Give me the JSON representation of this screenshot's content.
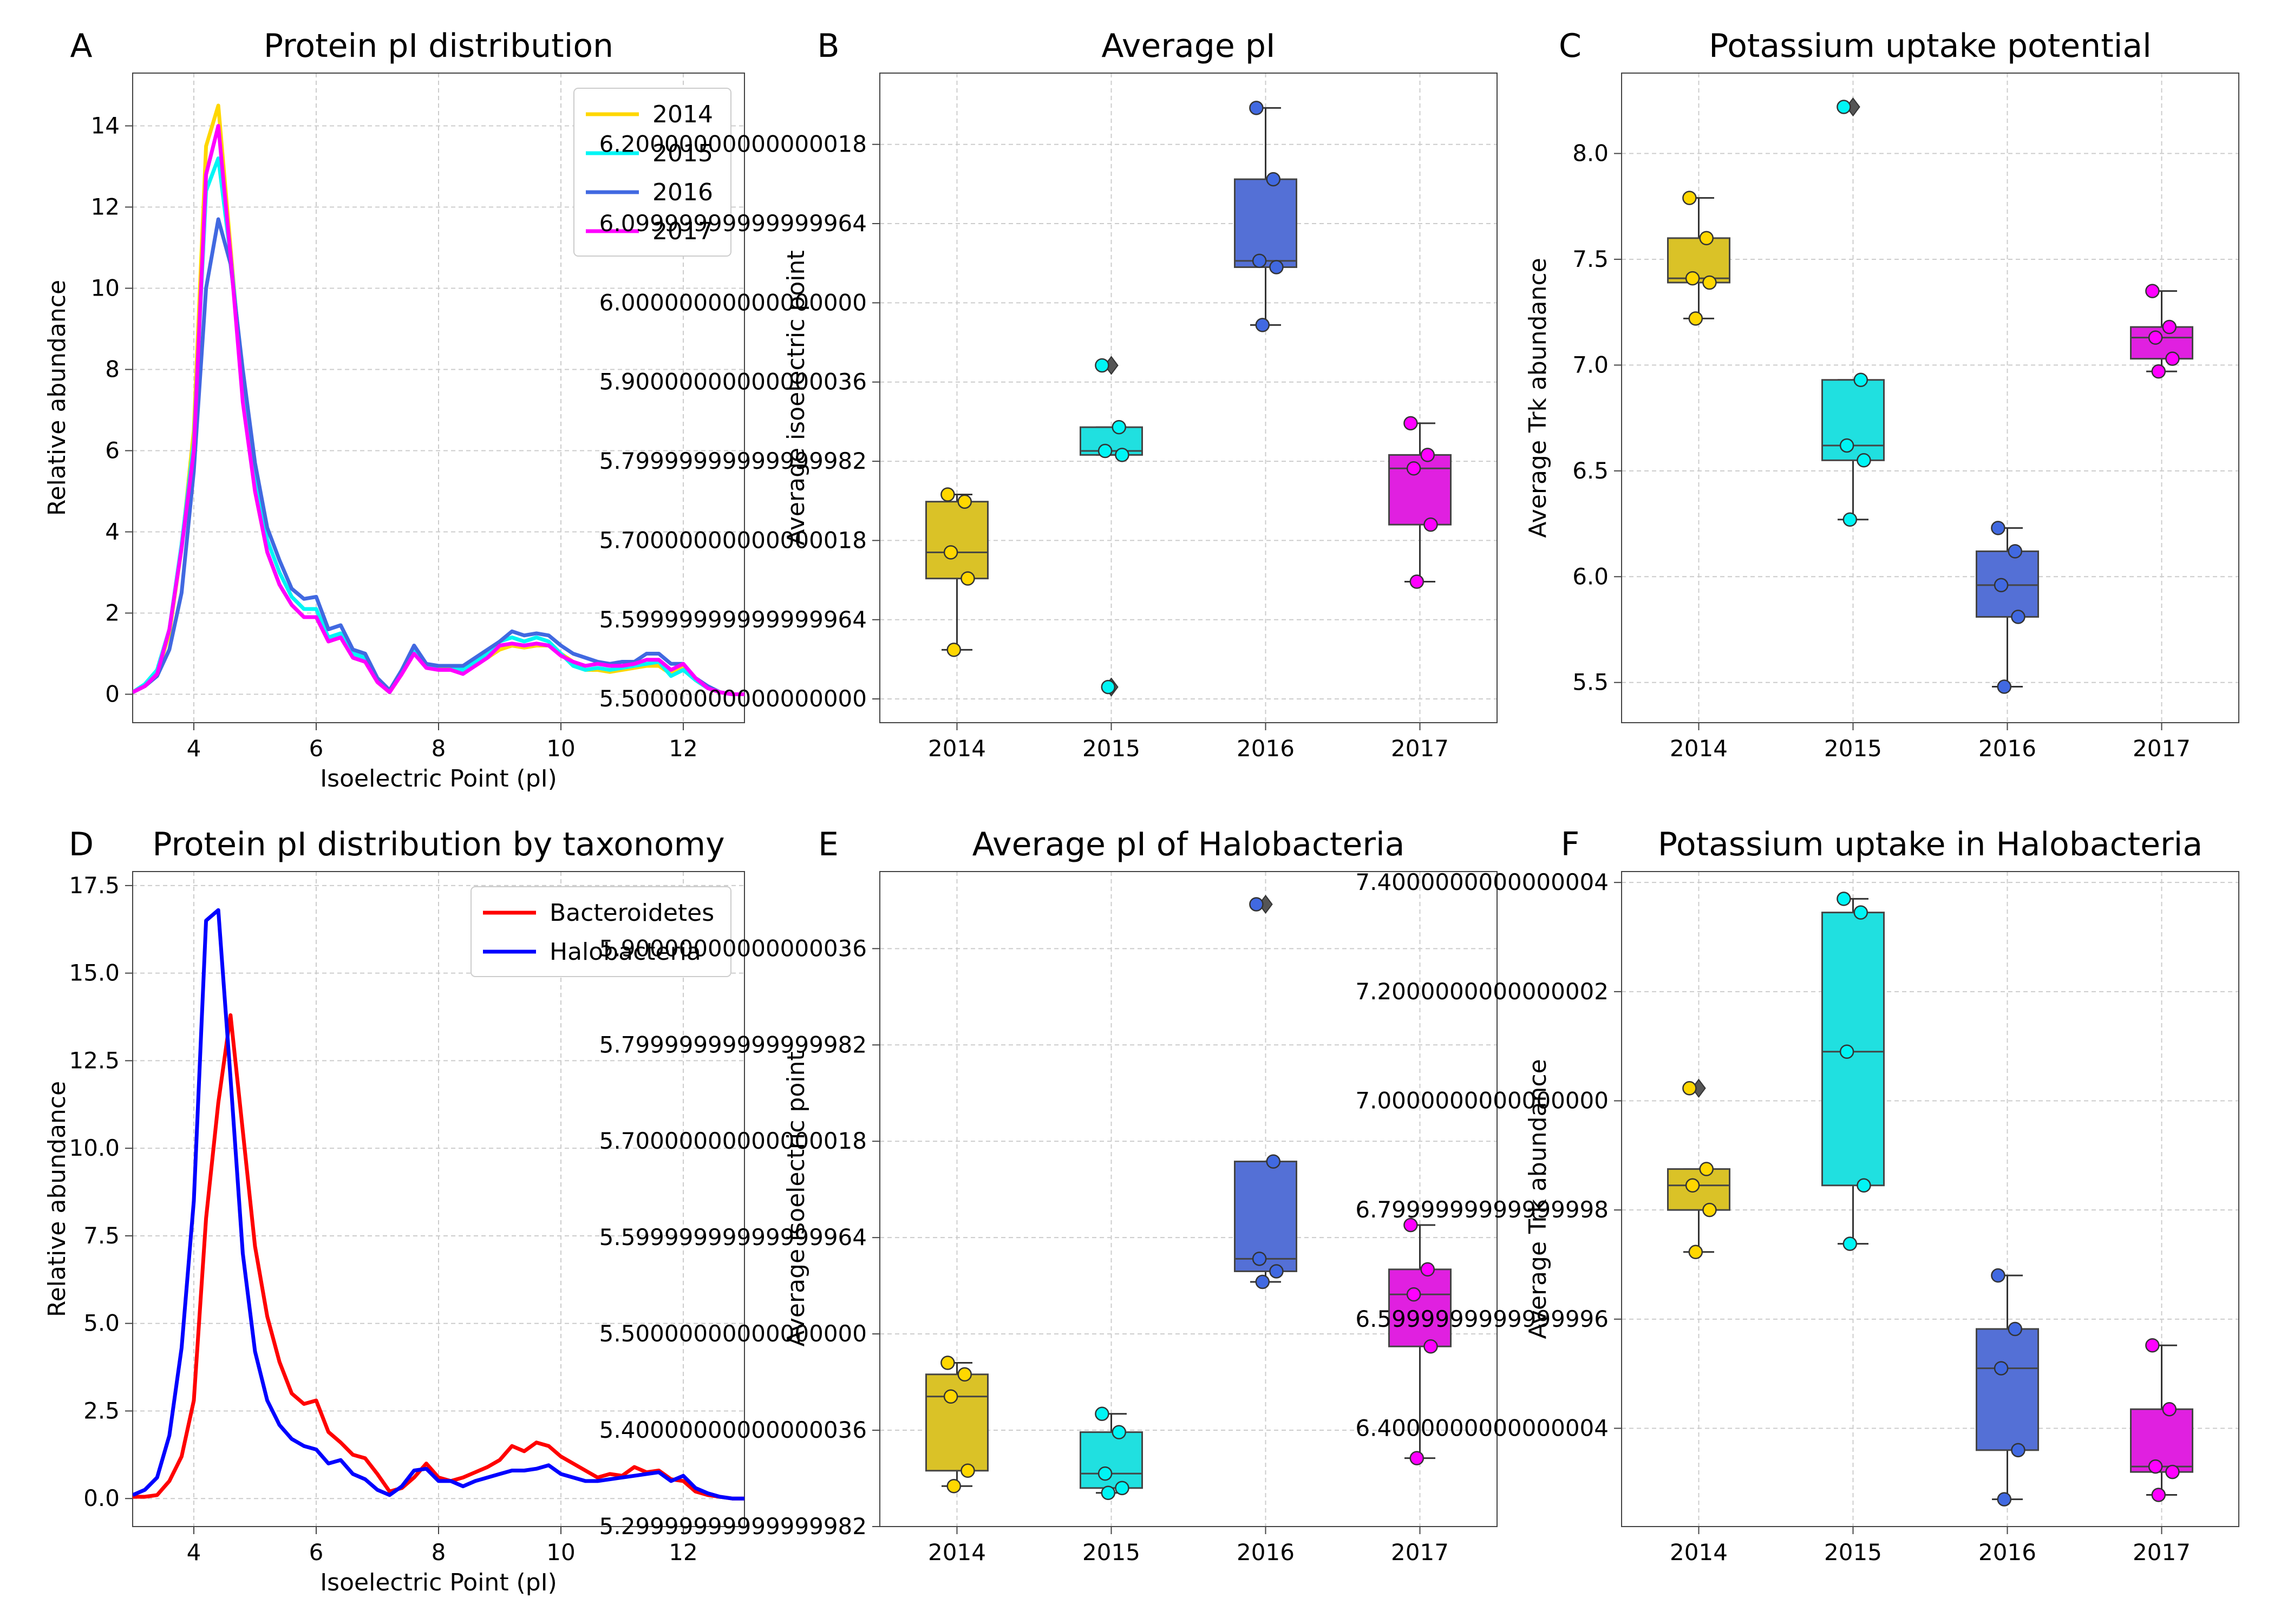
{
  "chart_data": [
    {
      "panel": "A",
      "type": "line",
      "title": "Protein pI distribution",
      "xlabel": "Isoelectric Point (pI)",
      "ylabel": "Relative abundance",
      "xlim": [
        3,
        13
      ],
      "ylim": [
        -0.7,
        15.3
      ],
      "xticks": [
        4,
        6,
        8,
        10,
        12
      ],
      "yticks": [
        0,
        2,
        4,
        6,
        8,
        10,
        12,
        14
      ],
      "grid": true,
      "legend": "top-right",
      "x": [
        3,
        3.2,
        3.4,
        3.6,
        3.8,
        4,
        4.2,
        4.4,
        4.6,
        4.8,
        5,
        5.2,
        5.4,
        5.6,
        5.8,
        6,
        6.2,
        6.4,
        6.6,
        6.8,
        7,
        7.2,
        7.4,
        7.6,
        7.8,
        8,
        8.2,
        8.4,
        8.6,
        8.8,
        9,
        9.2,
        9.4,
        9.6,
        9.8,
        10,
        10.2,
        10.4,
        10.6,
        10.8,
        11,
        11.2,
        11.4,
        11.6,
        11.8,
        12,
        12.2,
        12.4,
        12.6,
        12.8,
        13
      ],
      "series": [
        {
          "name": "2014",
          "color": "#FFD700",
          "values": [
            0.05,
            0.2,
            0.5,
            1.5,
            3.6,
            6.5,
            13.5,
            14.5,
            11,
            7.5,
            5,
            3.5,
            2.7,
            2.2,
            1.9,
            1.9,
            1.3,
            1.4,
            0.9,
            0.8,
            0.3,
            0.05,
            0.5,
            1.0,
            0.7,
            0.65,
            0.65,
            0.55,
            0.7,
            0.9,
            1.1,
            1.2,
            1.15,
            1.2,
            1.2,
            1.0,
            0.8,
            0.6,
            0.6,
            0.55,
            0.6,
            0.65,
            0.7,
            0.7,
            0.5,
            0.7,
            0.35,
            0.15,
            0.05,
            0.0,
            0.0
          ]
        },
        {
          "name": "2015",
          "color": "#00F5F5",
          "values": [
            0.05,
            0.25,
            0.6,
            1.6,
            3.7,
            6.2,
            12.4,
            13.2,
            10.8,
            7.8,
            5.3,
            3.8,
            3.0,
            2.4,
            2.1,
            2.1,
            1.4,
            1.5,
            1.0,
            0.9,
            0.35,
            0.05,
            0.55,
            1.1,
            0.7,
            0.7,
            0.7,
            0.6,
            0.8,
            1.0,
            1.3,
            1.4,
            1.3,
            1.4,
            1.3,
            1.0,
            0.7,
            0.6,
            0.65,
            0.6,
            0.65,
            0.7,
            0.75,
            0.8,
            0.45,
            0.6,
            0.35,
            0.15,
            0.05,
            0.0,
            0.0
          ]
        },
        {
          "name": "2016",
          "color": "#4169E1",
          "values": [
            0.05,
            0.2,
            0.45,
            1.1,
            2.5,
            5.5,
            10.0,
            11.7,
            10.6,
            8.0,
            5.7,
            4.1,
            3.3,
            2.6,
            2.35,
            2.4,
            1.6,
            1.7,
            1.1,
            1.0,
            0.4,
            0.1,
            0.6,
            1.2,
            0.75,
            0.7,
            0.7,
            0.7,
            0.9,
            1.1,
            1.3,
            1.55,
            1.45,
            1.5,
            1.45,
            1.2,
            1.0,
            0.9,
            0.8,
            0.75,
            0.8,
            0.8,
            1.0,
            1.0,
            0.75,
            0.75,
            0.4,
            0.2,
            0.05,
            0.0,
            0.0
          ]
        },
        {
          "name": "2017",
          "color": "#FF00FF",
          "values": [
            0.05,
            0.2,
            0.5,
            1.6,
            3.6,
            6.0,
            12.8,
            14.0,
            10.8,
            7.2,
            5.0,
            3.5,
            2.7,
            2.2,
            1.9,
            1.9,
            1.3,
            1.4,
            0.9,
            0.8,
            0.3,
            0.05,
            0.5,
            1.0,
            0.65,
            0.6,
            0.6,
            0.5,
            0.7,
            0.9,
            1.2,
            1.25,
            1.2,
            1.25,
            1.2,
            0.95,
            0.8,
            0.7,
            0.75,
            0.7,
            0.7,
            0.75,
            0.85,
            0.85,
            0.6,
            0.75,
            0.4,
            0.15,
            0.05,
            0.0,
            0.0
          ]
        }
      ]
    },
    {
      "panel": "B",
      "type": "box",
      "title": "Average pI",
      "xlabel": "",
      "ylabel": "Average isoelectric point",
      "categories": [
        "2014",
        "2015",
        "2016",
        "2017"
      ],
      "ylim": [
        5.47,
        6.29
      ],
      "yticks": [
        5.5,
        5.6,
        5.7,
        5.8,
        5.9,
        6.0,
        6.1,
        6.2
      ],
      "grid": true,
      "boxes": [
        {
          "color": "#DAC227",
          "point_color": "#FFD700",
          "q1": 5.652,
          "median": 5.685,
          "q3": 5.749,
          "whisker_low": 5.562,
          "whisker_high": 5.758,
          "outliers": [],
          "points": [
            5.758,
            5.749,
            5.685,
            5.652,
            5.562
          ]
        },
        {
          "color": "#20E0E0",
          "point_color": "#00F5F5",
          "q1": 5.808,
          "median": 5.813,
          "q3": 5.843,
          "whisker_low": 5.808,
          "whisker_high": 5.843,
          "outliers": [
            5.921,
            5.515
          ],
          "points": [
            5.921,
            5.843,
            5.813,
            5.808,
            5.515
          ]
        },
        {
          "color": "#5470D6",
          "point_color": "#4169E1",
          "q1": 6.045,
          "median": 6.053,
          "q3": 6.156,
          "whisker_low": 5.972,
          "whisker_high": 6.246,
          "outliers": [],
          "points": [
            6.246,
            6.156,
            6.053,
            6.045,
            5.972
          ]
        },
        {
          "color": "#E020E0",
          "point_color": "#FF00FF",
          "q1": 5.72,
          "median": 5.791,
          "q3": 5.808,
          "whisker_low": 5.648,
          "whisker_high": 5.848,
          "outliers": [],
          "points": [
            5.848,
            5.808,
            5.791,
            5.72,
            5.648
          ]
        }
      ]
    },
    {
      "panel": "C",
      "type": "box",
      "title": "Potassium uptake potential",
      "xlabel": "",
      "ylabel": "Average Trk abundance",
      "categories": [
        "2014",
        "2015",
        "2016",
        "2017"
      ],
      "ylim": [
        5.31,
        8.38
      ],
      "yticks": [
        5.5,
        6.0,
        6.5,
        7.0,
        7.5,
        8.0
      ],
      "grid": true,
      "boxes": [
        {
          "color": "#DAC227",
          "point_color": "#FFD700",
          "q1": 7.39,
          "median": 7.41,
          "q3": 7.6,
          "whisker_low": 7.22,
          "whisker_high": 7.79,
          "outliers": [],
          "points": [
            7.79,
            7.6,
            7.41,
            7.39,
            7.22
          ]
        },
        {
          "color": "#20E0E0",
          "point_color": "#00F5F5",
          "q1": 6.55,
          "median": 6.62,
          "q3": 6.93,
          "whisker_low": 6.27,
          "whisker_high": 6.93,
          "outliers": [
            8.22
          ],
          "points": [
            8.22,
            6.93,
            6.62,
            6.55,
            6.27
          ]
        },
        {
          "color": "#5470D6",
          "point_color": "#4169E1",
          "q1": 5.81,
          "median": 5.96,
          "q3": 6.12,
          "whisker_low": 5.48,
          "whisker_high": 6.23,
          "outliers": [],
          "points": [
            6.23,
            6.12,
            5.96,
            5.81,
            5.48
          ]
        },
        {
          "color": "#E020E0",
          "point_color": "#FF00FF",
          "q1": 7.03,
          "median": 7.13,
          "q3": 7.18,
          "whisker_low": 6.97,
          "whisker_high": 7.35,
          "outliers": [],
          "points": [
            7.35,
            7.18,
            7.13,
            7.03,
            6.97
          ]
        }
      ]
    },
    {
      "panel": "D",
      "type": "line",
      "title": "Protein pI distribution by taxonomy",
      "xlabel": "Isoelectric Point (pI)",
      "ylabel": "Relative abundance",
      "xlim": [
        3,
        13
      ],
      "ylim": [
        -0.8,
        17.9
      ],
      "xticks": [
        4,
        6,
        8,
        10,
        12
      ],
      "yticks": [
        0.0,
        2.5,
        5.0,
        7.5,
        10.0,
        12.5,
        15.0,
        17.5
      ],
      "grid": true,
      "legend": "top-right",
      "x": [
        3,
        3.2,
        3.4,
        3.6,
        3.8,
        4,
        4.2,
        4.4,
        4.6,
        4.8,
        5,
        5.2,
        5.4,
        5.6,
        5.8,
        6,
        6.2,
        6.4,
        6.6,
        6.8,
        7,
        7.2,
        7.4,
        7.6,
        7.8,
        8,
        8.2,
        8.4,
        8.6,
        8.8,
        9,
        9.2,
        9.4,
        9.6,
        9.8,
        10,
        10.2,
        10.4,
        10.6,
        10.8,
        11,
        11.2,
        11.4,
        11.6,
        11.8,
        12,
        12.2,
        12.4,
        12.6,
        12.8,
        13
      ],
      "series": [
        {
          "name": "Bacteroidetes",
          "color": "#FF0000",
          "values": [
            0.05,
            0.05,
            0.1,
            0.5,
            1.2,
            2.8,
            8.0,
            11.3,
            13.8,
            10.5,
            7.2,
            5.2,
            3.9,
            3.0,
            2.7,
            2.8,
            1.9,
            1.6,
            1.25,
            1.15,
            0.7,
            0.2,
            0.3,
            0.6,
            1.0,
            0.6,
            0.5,
            0.6,
            0.75,
            0.9,
            1.1,
            1.5,
            1.35,
            1.6,
            1.5,
            1.2,
            1.0,
            0.8,
            0.6,
            0.7,
            0.65,
            0.9,
            0.75,
            0.8,
            0.55,
            0.5,
            0.2,
            0.1,
            0.05,
            0.0,
            0.0
          ]
        },
        {
          "name": "Halobacteria",
          "color": "#0000FF",
          "values": [
            0.1,
            0.25,
            0.6,
            1.8,
            4.3,
            8.5,
            16.5,
            16.8,
            12.0,
            7.0,
            4.2,
            2.8,
            2.1,
            1.7,
            1.5,
            1.4,
            1.0,
            1.1,
            0.7,
            0.55,
            0.25,
            0.1,
            0.35,
            0.8,
            0.85,
            0.5,
            0.5,
            0.35,
            0.5,
            0.6,
            0.7,
            0.8,
            0.8,
            0.85,
            0.95,
            0.7,
            0.6,
            0.5,
            0.5,
            0.55,
            0.6,
            0.65,
            0.7,
            0.75,
            0.5,
            0.65,
            0.3,
            0.15,
            0.05,
            0.0,
            0.0
          ]
        }
      ]
    },
    {
      "panel": "E",
      "type": "box",
      "title": "Average pI of Halobacteria",
      "xlabel": "",
      "ylabel": "Average isoelectric point",
      "categories": [
        "2014",
        "2015",
        "2016",
        "2017"
      ],
      "ylim": [
        5.3,
        5.98
      ],
      "yticks": [
        5.3,
        5.4,
        5.5,
        5.6,
        5.7,
        5.8,
        5.9
      ],
      "grid": true,
      "boxes": [
        {
          "color": "#DAC227",
          "point_color": "#FFD700",
          "q1": 5.358,
          "median": 5.435,
          "q3": 5.458,
          "whisker_low": 5.342,
          "whisker_high": 5.47,
          "outliers": [],
          "points": [
            5.47,
            5.458,
            5.435,
            5.358,
            5.342
          ]
        },
        {
          "color": "#20E0E0",
          "point_color": "#00F5F5",
          "q1": 5.34,
          "median": 5.355,
          "q3": 5.398,
          "whisker_low": 5.335,
          "whisker_high": 5.417,
          "outliers": [],
          "points": [
            5.417,
            5.398,
            5.355,
            5.34,
            5.335
          ]
        },
        {
          "color": "#5470D6",
          "point_color": "#4169E1",
          "q1": 5.565,
          "median": 5.578,
          "q3": 5.679,
          "whisker_low": 5.554,
          "whisker_high": 5.679,
          "outliers": [
            5.946
          ],
          "points": [
            5.946,
            5.679,
            5.578,
            5.565,
            5.554
          ]
        },
        {
          "color": "#E020E0",
          "point_color": "#FF00FF",
          "q1": 5.487,
          "median": 5.541,
          "q3": 5.567,
          "whisker_low": 5.371,
          "whisker_high": 5.613,
          "outliers": [],
          "points": [
            5.613,
            5.567,
            5.541,
            5.487,
            5.371
          ]
        }
      ]
    },
    {
      "panel": "F",
      "type": "box",
      "title": "Potassium uptake in Halobacteria",
      "xlabel": "",
      "ylabel": "Average Trk abundance",
      "categories": [
        "2014",
        "2015",
        "2016",
        "2017"
      ],
      "ylim": [
        6.22,
        7.42
      ],
      "yticks": [
        6.4,
        6.6,
        6.8,
        7.0,
        7.2,
        7.4
      ],
      "grid": true,
      "boxes": [
        {
          "color": "#DAC227",
          "point_color": "#FFD700",
          "q1": 6.8,
          "median": 6.845,
          "q3": 6.875,
          "whisker_low": 6.723,
          "whisker_high": 6.875,
          "outliers": [
            7.023
          ],
          "points": [
            7.023,
            6.875,
            6.845,
            6.8,
            6.723
          ]
        },
        {
          "color": "#20E0E0",
          "point_color": "#00F5F5",
          "q1": 6.845,
          "median": 7.09,
          "q3": 7.345,
          "whisker_low": 6.738,
          "whisker_high": 7.37,
          "outliers": [],
          "points": [
            7.37,
            7.345,
            7.09,
            6.845,
            6.738
          ]
        },
        {
          "color": "#5470D6",
          "point_color": "#4169E1",
          "q1": 6.36,
          "median": 6.51,
          "q3": 6.582,
          "whisker_low": 6.27,
          "whisker_high": 6.68,
          "outliers": [],
          "points": [
            6.68,
            6.582,
            6.51,
            6.36,
            6.27
          ]
        },
        {
          "color": "#E020E0",
          "point_color": "#FF00FF",
          "q1": 6.32,
          "median": 6.33,
          "q3": 6.435,
          "whisker_low": 6.278,
          "whisker_high": 6.552,
          "outliers": [],
          "points": [
            6.552,
            6.435,
            6.33,
            6.32,
            6.278
          ]
        }
      ]
    }
  ]
}
